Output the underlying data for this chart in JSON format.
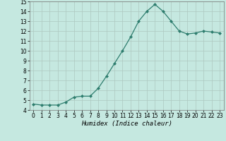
{
  "x": [
    0,
    1,
    2,
    3,
    4,
    5,
    6,
    7,
    8,
    9,
    10,
    11,
    12,
    13,
    14,
    15,
    16,
    17,
    18,
    19,
    20,
    21,
    22,
    23
  ],
  "y": [
    4.6,
    4.5,
    4.5,
    4.5,
    4.8,
    5.3,
    5.4,
    5.4,
    6.2,
    7.4,
    8.7,
    10.0,
    11.4,
    13.0,
    14.0,
    14.7,
    14.0,
    13.0,
    12.0,
    11.7,
    11.8,
    12.0,
    11.9,
    11.8
  ],
  "xlabel": "Humidex (Indice chaleur)",
  "ylim": [
    4,
    15
  ],
  "xlim_min": -0.5,
  "xlim_max": 23.5,
  "yticks": [
    4,
    5,
    6,
    7,
    8,
    9,
    10,
    11,
    12,
    13,
    14,
    15
  ],
  "xticks": [
    0,
    1,
    2,
    3,
    4,
    5,
    6,
    7,
    8,
    9,
    10,
    11,
    12,
    13,
    14,
    15,
    16,
    17,
    18,
    19,
    20,
    21,
    22,
    23
  ],
  "line_color": "#2e7d6e",
  "marker_color": "#2e7d6e",
  "bg_color": "#c5e8e0",
  "grid_color": "#adc8c0",
  "tick_fontsize": 5.5,
  "label_fontsize": 6.5
}
